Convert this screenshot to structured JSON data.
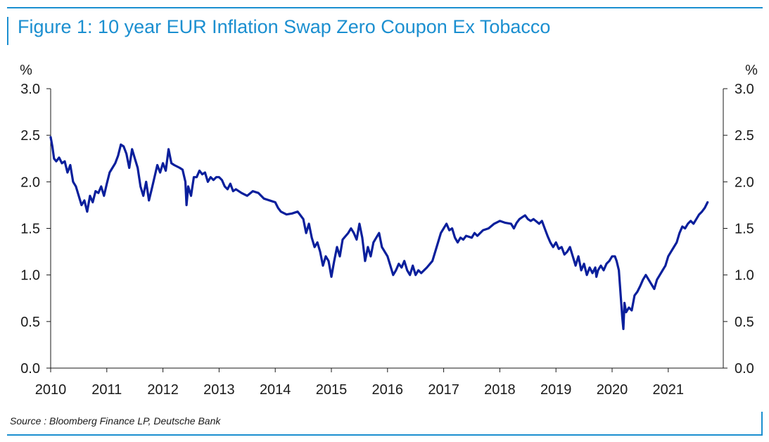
{
  "figure": {
    "title": "Figure 1: 10 year EUR Inflation Swap Zero Coupon Ex Tobacco",
    "source": "Source : Bloomberg Finance LP, Deutsche Bank"
  },
  "colors": {
    "accent": "#1b8fd0",
    "line": "#0a1f9c",
    "text": "#1a1a1a"
  },
  "chart_data": {
    "type": "line",
    "title": "Figure 1: 10 year EUR Inflation Swap Zero Coupon Ex Tobacco",
    "ylabel_left": "%",
    "ylabel_right": "%",
    "xlim": [
      2010,
      2021.95
    ],
    "ylim": [
      0,
      3
    ],
    "x_ticks": [
      "2010",
      "2011",
      "2012",
      "2013",
      "2014",
      "2015",
      "2016",
      "2017",
      "2018",
      "2019",
      "2020",
      "2021"
    ],
    "y_ticks": [
      "0.0",
      "0.5",
      "1.0",
      "1.5",
      "2.0",
      "2.5",
      "3.0"
    ],
    "grid": false,
    "series": [
      {
        "values": [
          [
            2010.0,
            2.48
          ],
          [
            2010.03,
            2.38
          ],
          [
            2010.06,
            2.25
          ],
          [
            2010.1,
            2.22
          ],
          [
            2010.15,
            2.26
          ],
          [
            2010.2,
            2.2
          ],
          [
            2010.25,
            2.22
          ],
          [
            2010.3,
            2.1
          ],
          [
            2010.35,
            2.18
          ],
          [
            2010.4,
            2.0
          ],
          [
            2010.45,
            1.95
          ],
          [
            2010.5,
            1.85
          ],
          [
            2010.55,
            1.75
          ],
          [
            2010.6,
            1.8
          ],
          [
            2010.65,
            1.68
          ],
          [
            2010.7,
            1.85
          ],
          [
            2010.75,
            1.78
          ],
          [
            2010.8,
            1.9
          ],
          [
            2010.85,
            1.88
          ],
          [
            2010.9,
            1.95
          ],
          [
            2010.95,
            1.85
          ],
          [
            2011.0,
            1.98
          ],
          [
            2011.05,
            2.1
          ],
          [
            2011.1,
            2.15
          ],
          [
            2011.15,
            2.2
          ],
          [
            2011.2,
            2.28
          ],
          [
            2011.25,
            2.4
          ],
          [
            2011.3,
            2.38
          ],
          [
            2011.35,
            2.3
          ],
          [
            2011.4,
            2.15
          ],
          [
            2011.45,
            2.35
          ],
          [
            2011.5,
            2.25
          ],
          [
            2011.55,
            2.15
          ],
          [
            2011.6,
            1.95
          ],
          [
            2011.65,
            1.85
          ],
          [
            2011.7,
            2.0
          ],
          [
            2011.75,
            1.8
          ],
          [
            2011.8,
            1.92
          ],
          [
            2011.85,
            2.05
          ],
          [
            2011.9,
            2.18
          ],
          [
            2011.95,
            2.1
          ],
          [
            2012.0,
            2.2
          ],
          [
            2012.05,
            2.12
          ],
          [
            2012.1,
            2.35
          ],
          [
            2012.15,
            2.2
          ],
          [
            2012.2,
            2.18
          ],
          [
            2012.3,
            2.15
          ],
          [
            2012.35,
            2.13
          ],
          [
            2012.4,
            2.0
          ],
          [
            2012.42,
            1.75
          ],
          [
            2012.45,
            1.95
          ],
          [
            2012.5,
            1.85
          ],
          [
            2012.55,
            2.05
          ],
          [
            2012.6,
            2.05
          ],
          [
            2012.65,
            2.12
          ],
          [
            2012.7,
            2.08
          ],
          [
            2012.75,
            2.1
          ],
          [
            2012.8,
            2.0
          ],
          [
            2012.85,
            2.05
          ],
          [
            2012.9,
            2.02
          ],
          [
            2012.95,
            2.05
          ],
          [
            2013.0,
            2.05
          ],
          [
            2013.05,
            2.02
          ],
          [
            2013.1,
            1.95
          ],
          [
            2013.15,
            1.92
          ],
          [
            2013.2,
            1.98
          ],
          [
            2013.25,
            1.9
          ],
          [
            2013.3,
            1.92
          ],
          [
            2013.4,
            1.88
          ],
          [
            2013.5,
            1.85
          ],
          [
            2013.6,
            1.9
          ],
          [
            2013.7,
            1.88
          ],
          [
            2013.8,
            1.82
          ],
          [
            2013.9,
            1.8
          ],
          [
            2014.0,
            1.78
          ],
          [
            2014.05,
            1.72
          ],
          [
            2014.1,
            1.68
          ],
          [
            2014.2,
            1.65
          ],
          [
            2014.3,
            1.66
          ],
          [
            2014.4,
            1.68
          ],
          [
            2014.45,
            1.64
          ],
          [
            2014.5,
            1.6
          ],
          [
            2014.55,
            1.45
          ],
          [
            2014.6,
            1.55
          ],
          [
            2014.65,
            1.4
          ],
          [
            2014.7,
            1.3
          ],
          [
            2014.75,
            1.35
          ],
          [
            2014.8,
            1.25
          ],
          [
            2014.85,
            1.1
          ],
          [
            2014.9,
            1.2
          ],
          [
            2014.95,
            1.15
          ],
          [
            2015.0,
            0.98
          ],
          [
            2015.05,
            1.15
          ],
          [
            2015.1,
            1.3
          ],
          [
            2015.15,
            1.2
          ],
          [
            2015.2,
            1.38
          ],
          [
            2015.3,
            1.45
          ],
          [
            2015.35,
            1.5
          ],
          [
            2015.4,
            1.45
          ],
          [
            2015.45,
            1.38
          ],
          [
            2015.5,
            1.55
          ],
          [
            2015.55,
            1.4
          ],
          [
            2015.6,
            1.15
          ],
          [
            2015.65,
            1.3
          ],
          [
            2015.7,
            1.2
          ],
          [
            2015.75,
            1.35
          ],
          [
            2015.8,
            1.4
          ],
          [
            2015.85,
            1.45
          ],
          [
            2015.9,
            1.3
          ],
          [
            2016.0,
            1.2
          ],
          [
            2016.05,
            1.1
          ],
          [
            2016.1,
            1.0
          ],
          [
            2016.15,
            1.05
          ],
          [
            2016.2,
            1.12
          ],
          [
            2016.25,
            1.08
          ],
          [
            2016.3,
            1.15
          ],
          [
            2016.35,
            1.05
          ],
          [
            2016.4,
            1.0
          ],
          [
            2016.45,
            1.1
          ],
          [
            2016.5,
            1.0
          ],
          [
            2016.55,
            1.05
          ],
          [
            2016.6,
            1.02
          ],
          [
            2016.7,
            1.08
          ],
          [
            2016.8,
            1.15
          ],
          [
            2016.85,
            1.25
          ],
          [
            2016.9,
            1.35
          ],
          [
            2016.95,
            1.45
          ],
          [
            2017.0,
            1.5
          ],
          [
            2017.05,
            1.55
          ],
          [
            2017.1,
            1.48
          ],
          [
            2017.15,
            1.5
          ],
          [
            2017.2,
            1.4
          ],
          [
            2017.25,
            1.35
          ],
          [
            2017.3,
            1.4
          ],
          [
            2017.35,
            1.38
          ],
          [
            2017.4,
            1.42
          ],
          [
            2017.5,
            1.4
          ],
          [
            2017.55,
            1.45
          ],
          [
            2017.6,
            1.42
          ],
          [
            2017.7,
            1.48
          ],
          [
            2017.8,
            1.5
          ],
          [
            2017.9,
            1.55
          ],
          [
            2018.0,
            1.58
          ],
          [
            2018.1,
            1.56
          ],
          [
            2018.2,
            1.55
          ],
          [
            2018.25,
            1.5
          ],
          [
            2018.3,
            1.56
          ],
          [
            2018.35,
            1.6
          ],
          [
            2018.4,
            1.62
          ],
          [
            2018.45,
            1.64
          ],
          [
            2018.5,
            1.6
          ],
          [
            2018.55,
            1.58
          ],
          [
            2018.6,
            1.6
          ],
          [
            2018.7,
            1.55
          ],
          [
            2018.75,
            1.58
          ],
          [
            2018.8,
            1.5
          ],
          [
            2018.85,
            1.42
          ],
          [
            2018.9,
            1.35
          ],
          [
            2018.95,
            1.3
          ],
          [
            2019.0,
            1.35
          ],
          [
            2019.05,
            1.28
          ],
          [
            2019.1,
            1.3
          ],
          [
            2019.15,
            1.22
          ],
          [
            2019.2,
            1.25
          ],
          [
            2019.25,
            1.3
          ],
          [
            2019.3,
            1.2
          ],
          [
            2019.35,
            1.1
          ],
          [
            2019.4,
            1.2
          ],
          [
            2019.45,
            1.05
          ],
          [
            2019.5,
            1.12
          ],
          [
            2019.55,
            1.0
          ],
          [
            2019.6,
            1.08
          ],
          [
            2019.65,
            1.02
          ],
          [
            2019.7,
            1.08
          ],
          [
            2019.72,
            0.98
          ],
          [
            2019.75,
            1.05
          ],
          [
            2019.8,
            1.1
          ],
          [
            2019.85,
            1.05
          ],
          [
            2019.9,
            1.12
          ],
          [
            2019.95,
            1.15
          ],
          [
            2020.0,
            1.2
          ],
          [
            2020.05,
            1.2
          ],
          [
            2020.08,
            1.15
          ],
          [
            2020.12,
            1.05
          ],
          [
            2020.15,
            0.8
          ],
          [
            2020.18,
            0.55
          ],
          [
            2020.2,
            0.42
          ],
          [
            2020.22,
            0.7
          ],
          [
            2020.25,
            0.6
          ],
          [
            2020.3,
            0.65
          ],
          [
            2020.35,
            0.62
          ],
          [
            2020.4,
            0.78
          ],
          [
            2020.45,
            0.82
          ],
          [
            2020.5,
            0.88
          ],
          [
            2020.55,
            0.95
          ],
          [
            2020.6,
            1.0
          ],
          [
            2020.65,
            0.95
          ],
          [
            2020.7,
            0.9
          ],
          [
            2020.75,
            0.85
          ],
          [
            2020.8,
            0.95
          ],
          [
            2020.85,
            1.0
          ],
          [
            2020.9,
            1.05
          ],
          [
            2020.95,
            1.1
          ],
          [
            2021.0,
            1.2
          ],
          [
            2021.05,
            1.25
          ],
          [
            2021.1,
            1.3
          ],
          [
            2021.15,
            1.35
          ],
          [
            2021.2,
            1.45
          ],
          [
            2021.25,
            1.52
          ],
          [
            2021.3,
            1.5
          ],
          [
            2021.35,
            1.55
          ],
          [
            2021.4,
            1.58
          ],
          [
            2021.45,
            1.55
          ],
          [
            2021.5,
            1.6
          ],
          [
            2021.55,
            1.65
          ],
          [
            2021.6,
            1.68
          ],
          [
            2021.65,
            1.72
          ],
          [
            2021.7,
            1.78
          ]
        ]
      }
    ]
  }
}
